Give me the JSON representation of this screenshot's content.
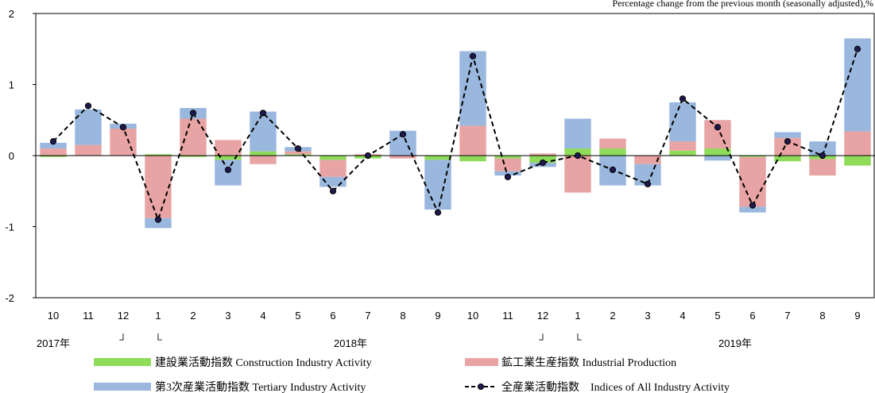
{
  "chart_data": {
    "type": "bar",
    "subtype": "stacked-bar-with-line",
    "note": "Percentage change from the previous month (seasonally adjusted),%",
    "ylim": [
      -2,
      2
    ],
    "yticks": [
      "2",
      "1",
      "0",
      "-1",
      "-2"
    ],
    "ytick_values": [
      2,
      1,
      0,
      -1,
      -2
    ],
    "categories": [
      "10",
      "11",
      "12",
      "1",
      "2",
      "3",
      "4",
      "5",
      "6",
      "7",
      "8",
      "9",
      "10",
      "11",
      "12",
      "1",
      "2",
      "3",
      "4",
      "5",
      "6",
      "7",
      "8",
      "9"
    ],
    "year_labels": [
      {
        "label": "2017年",
        "index": 0
      },
      {
        "label": "2018年",
        "index": 8.5
      },
      {
        "label": "2019年",
        "index": 19.5
      }
    ],
    "year_break_markers": [
      {
        "glyph": "┘",
        "index": 2
      },
      {
        "glyph": "└",
        "index": 3
      },
      {
        "glyph": "┘",
        "index": 14
      },
      {
        "glyph": "└",
        "index": 15
      }
    ],
    "series": [
      {
        "name": "建設業活動指数 Construction Industry Activity",
        "color": "#8fdc5a",
        "values": [
          -0.02,
          0.0,
          0.0,
          0.02,
          -0.02,
          -0.06,
          0.06,
          0.02,
          -0.06,
          -0.04,
          0.0,
          -0.06,
          -0.08,
          -0.04,
          -0.1,
          0.1,
          0.1,
          0.0,
          0.07,
          0.1,
          -0.02,
          -0.08,
          -0.05,
          -0.14
        ]
      },
      {
        "name": "鉱工業生産指数 Industrial Production",
        "color": "#e8a4a4",
        "values": [
          0.1,
          0.15,
          0.38,
          -0.88,
          0.52,
          0.22,
          -0.12,
          0.04,
          -0.24,
          0.02,
          -0.04,
          0.0,
          0.42,
          -0.18,
          0.03,
          -0.52,
          0.14,
          -0.12,
          0.13,
          0.4,
          -0.7,
          0.25,
          -0.23,
          0.34
        ]
      },
      {
        "name": "第3次産業活動指数 Tertiary Industry Activity",
        "color": "#9ab7de",
        "values": [
          0.08,
          0.5,
          0.07,
          -0.14,
          0.15,
          -0.36,
          0.56,
          0.06,
          -0.14,
          0.0,
          0.35,
          -0.7,
          1.05,
          -0.06,
          -0.06,
          0.42,
          -0.42,
          -0.3,
          0.55,
          -0.07,
          -0.08,
          0.08,
          0.2,
          1.31
        ]
      }
    ],
    "line": {
      "name": "全産業活動指数　Indices of All Industry Activity",
      "color": "#000000",
      "marker_color": "#1f1a4d",
      "values": [
        0.2,
        0.7,
        0.4,
        -0.9,
        0.6,
        -0.2,
        0.6,
        0.1,
        -0.5,
        0.0,
        0.3,
        -0.8,
        1.4,
        -0.3,
        -0.1,
        0.0,
        -0.2,
        -0.4,
        0.8,
        0.4,
        -0.7,
        0.2,
        0.0,
        1.5
      ]
    }
  }
}
